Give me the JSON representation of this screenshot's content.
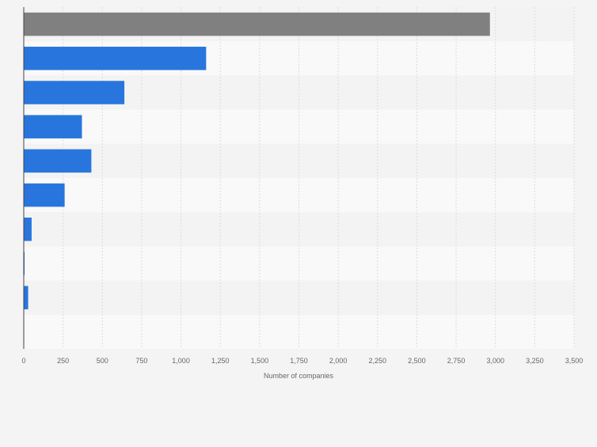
{
  "chart_data": {
    "type": "bar",
    "orientation": "horizontal",
    "xlabel": "Number of companies",
    "xlim": [
      0,
      3500
    ],
    "xticks": [
      0,
      250,
      500,
      750,
      1000,
      1250,
      1500,
      1750,
      2000,
      2250,
      2500,
      2750,
      3000,
      3250,
      3500
    ],
    "xtick_labels": [
      "0",
      "250",
      "500",
      "750",
      "1,000",
      "1,250",
      "1,500",
      "1,750",
      "2,000",
      "2,250",
      "2,500",
      "2,750",
      "3,000",
      "3,250",
      "3,500"
    ],
    "category_labels_visible": false,
    "values": [
      2965,
      1160,
      640,
      370,
      430,
      260,
      50,
      5,
      28,
      0
    ],
    "bar_colors": [
      "#808080",
      "#2876dd",
      "#2876dd",
      "#2876dd",
      "#2876dd",
      "#2876dd",
      "#2876dd",
      "#2876dd",
      "#2876dd",
      "#2876dd"
    ],
    "grid": true,
    "legend": "none"
  },
  "colors": {
    "background": "#f4f4f4",
    "band_light": "#f9f9f9",
    "band_dark": "#f3f3f3",
    "gridline": "#dcdcdc",
    "axis": "#444444",
    "tick_text": "#666666"
  }
}
